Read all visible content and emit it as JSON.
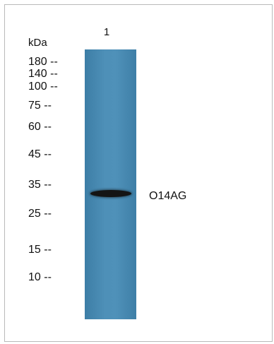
{
  "lane_label": "1",
  "unit_label": "kDa",
  "markers": [
    {
      "label": "180 --",
      "kda": 180
    },
    {
      "label": "140 --",
      "kda": 140
    },
    {
      "label": "100 --",
      "kda": 100
    },
    {
      "label": "75 --",
      "kda": 75
    },
    {
      "label": "60 --",
      "kda": 60
    },
    {
      "label": "45 --",
      "kda": 45
    },
    {
      "label": "35 --",
      "kda": 35
    },
    {
      "label": "25 --",
      "kda": 25
    },
    {
      "label": "15 --",
      "kda": 15
    },
    {
      "label": "10 --",
      "kda": 10
    }
  ],
  "band": {
    "label": "O14AG",
    "kda": 33
  },
  "colors": {
    "lane": "#4a8bb2",
    "band": "#141414",
    "border": "#b9b9b9"
  }
}
